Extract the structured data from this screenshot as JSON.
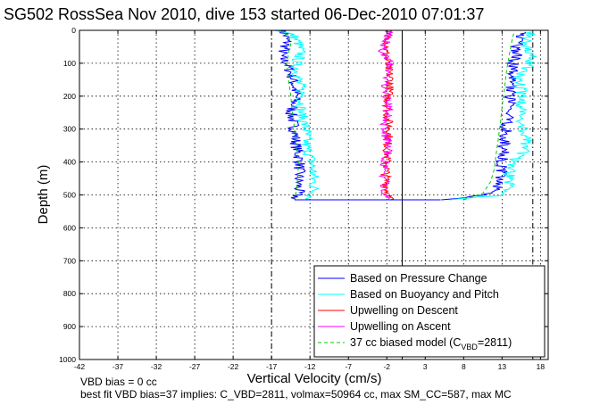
{
  "chart_data": {
    "type": "line",
    "title": "SG502 RossSea Nov 2010, dive 153 started 06-Dec-2010 07:01:37",
    "xlabel": "Vertical Velocity (cm/s)",
    "ylabel": "Depth (m)",
    "xlim": [
      -42,
      19
    ],
    "ylim": [
      1000,
      0
    ],
    "x_ticks": [
      -42,
      -37,
      -32,
      -27,
      -22,
      -17,
      -12,
      -7,
      -2,
      3,
      8,
      13,
      18
    ],
    "y_ticks": [
      0,
      100,
      200,
      300,
      400,
      500,
      600,
      700,
      800,
      900,
      1000
    ],
    "grid": true,
    "legend_position": "bottom-right",
    "reference_lines": {
      "zero_line_x": 0,
      "model_dashed_x": [
        -17,
        17
      ]
    },
    "series": [
      {
        "name": "Based on Pressure Change",
        "color": "#0000ff",
        "legs": [
          {
            "depth": [
              0,
              10,
              40,
              60,
              80,
              100,
              150,
              200,
              250,
              300,
              350,
              400,
              450,
              490,
              515
            ],
            "x": [
              -16,
              -15.2,
              -15,
              -15.4,
              -15.8,
              -15,
              -14.2,
              -13.8,
              -14.5,
              -14,
              -13.8,
              -13.3,
              -13.5,
              -13.5,
              -14
            ]
          },
          {
            "depth": [
              515,
              500,
              480,
              450,
              420,
              400,
              350,
              300,
              250,
              200,
              150,
              100,
              70,
              50,
              20,
              5
            ],
            "x": [
              5,
              11,
              12.5,
              12.8,
              13,
              13,
              13.2,
              13.5,
              13.8,
              14,
              14.2,
              14.5,
              15,
              14.8,
              15.5,
              16
            ]
          }
        ]
      },
      {
        "name": "Based on Buoyancy and Pitch",
        "color": "#00ffff",
        "legs": [
          {
            "depth": [
              0,
              15,
              40,
              70,
              100,
              150,
              200,
              250,
              300,
              350,
              400,
              450,
              490,
              515
            ],
            "x": [
              -16,
              -14.2,
              -13.5,
              -13.2,
              -13.8,
              -13.5,
              -13,
              -13.2,
              -12.5,
              -12.5,
              -11.8,
              -11.5,
              -11.5,
              -12
            ]
          },
          {
            "depth": [
              515,
              500,
              470,
              450,
              400,
              380,
              350,
              300,
              250,
              200,
              150,
              100,
              70,
              50,
              20,
              5
            ],
            "x": [
              6,
              13.5,
              14,
              13.8,
              14.3,
              15.5,
              16.2,
              15.8,
              15.3,
              15.8,
              15,
              16.5,
              16.8,
              16,
              16.5,
              17
            ]
          }
        ]
      },
      {
        "name": "Upwelling on Descent",
        "color": "#ff0000",
        "legs": [
          {
            "depth": [
              0,
              30,
              60,
              100,
              150,
              200,
              250,
              300,
              350,
              400,
              450,
              500,
              515
            ],
            "x": [
              -1.8,
              -1.7,
              -2.2,
              -2,
              -1.5,
              -1.8,
              -2,
              -1.6,
              -1.9,
              -2,
              -2.1,
              -1.8,
              -1.5
            ]
          }
        ]
      },
      {
        "name": "Upwelling on Ascent",
        "color": "#ff00ff",
        "legs": [
          {
            "depth": [
              515,
              480,
              440,
              400,
              350,
              300,
              250,
              200,
              150,
              100,
              60,
              30,
              0
            ],
            "x": [
              -2,
              -2.2,
              -2.4,
              -2.2,
              -1.6,
              -2.5,
              -1.7,
              -2,
              -2.3,
              -1.5,
              -2.6,
              -2,
              -1.8
            ]
          }
        ]
      },
      {
        "name": "37 cc biased model (C_VBD=2811)",
        "color": "#00cc00",
        "legs": [
          {
            "depth": [
              0,
              15,
              40,
              70,
              100,
              150,
              200,
              250,
              300,
              350,
              400,
              450,
              490,
              515
            ],
            "x": [
              -16,
              -14.8,
              -14.5,
              -14.8,
              -15,
              -14.8,
              -14.5,
              -14.3,
              -14,
              -13.8,
              -13.5,
              -13.6,
              -13.8,
              -14
            ]
          },
          {
            "depth": [
              515,
              495,
              460,
              420,
              380,
              330,
              280,
              230,
              200,
              160,
              120,
              80,
              40,
              10
            ],
            "x": [
              8,
              10.5,
              11.5,
              12,
              12.2,
              12.5,
              12.8,
              13,
              13.2,
              13.4,
              13.6,
              13.9,
              14.2,
              14.5
            ]
          }
        ]
      }
    ]
  },
  "legend": {
    "item1": "Based on Pressure Change",
    "item2": "Based on Buoyancy and Pitch",
    "item3": "Upwelling on Descent",
    "item4": "Upwelling on Ascent",
    "item5_prefix": "37 cc biased model (C",
    "item5_sub": "VBD",
    "item5_suffix": "=2811)"
  },
  "notes": {
    "line1": "VBD bias = 0 cc",
    "line2": "best fit VBD bias=37 implies: C_VBD=2811, volmax=50964 cc, max SM_CC=587, max MC"
  }
}
